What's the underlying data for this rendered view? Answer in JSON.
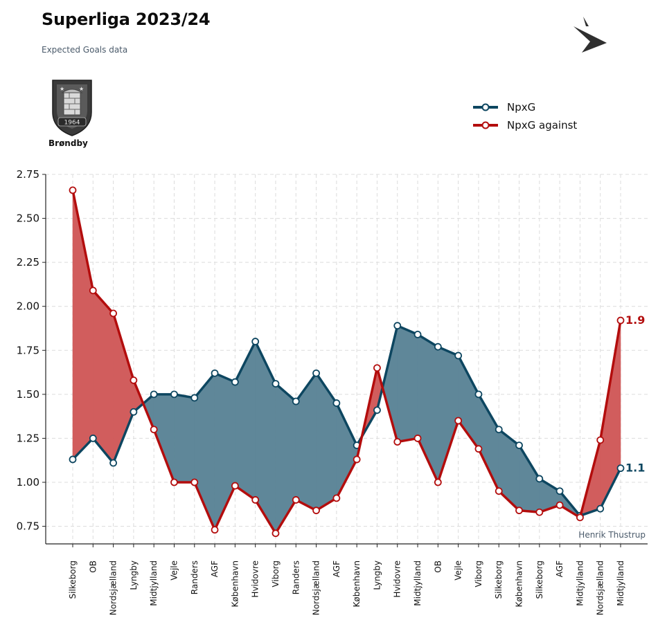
{
  "header": {
    "title": "Superliga 2023/24",
    "subtitle": "Expected Goals data"
  },
  "team": {
    "name": "Brøndby",
    "crest_year": "1964"
  },
  "credit": "Henrik Thustrup",
  "colors": {
    "npxg": "#0d4660",
    "npxg_against": "#b30d0d",
    "fill_npxg": "#5f8799",
    "fill_against": "#d15d5d",
    "grid": "#dcdcdc"
  },
  "chart_data": {
    "type": "line",
    "ylim": [
      0.65,
      2.75
    ],
    "yticks": [
      "0.75",
      "1.00",
      "1.25",
      "1.50",
      "1.75",
      "2.00",
      "2.25",
      "2.50",
      "2.75"
    ],
    "grid": true,
    "legend_position": "top-right",
    "categories": [
      "Silkeborg",
      "OB",
      "Nordsjælland",
      "Lyngby",
      "Midtjylland",
      "Vejle",
      "Randers",
      "AGF",
      "København",
      "Hvidovre",
      "Viborg",
      "Randers",
      "Nordsjælland",
      "AGF",
      "København",
      "Lyngby",
      "Hvidovre",
      "Midtjylland",
      "OB",
      "Vejle",
      "Viborg",
      "Silkeborg",
      "København",
      "Silkeborg",
      "AGF",
      "Midtjylland",
      "Nordsjælland",
      "Midtjylland"
    ],
    "series": [
      {
        "name": "NpxG",
        "color": "#0d4660",
        "end_label": "1.1",
        "values": [
          1.13,
          1.25,
          1.11,
          1.4,
          1.5,
          1.5,
          1.48,
          1.62,
          1.57,
          1.8,
          1.56,
          1.46,
          1.62,
          1.45,
          1.21,
          1.41,
          1.89,
          1.84,
          1.77,
          1.72,
          1.5,
          1.3,
          1.21,
          1.02,
          0.95,
          0.81,
          0.85,
          1.08
        ]
      },
      {
        "name": "NpxG against",
        "color": "#b30d0d",
        "end_label": "1.9",
        "values": [
          2.66,
          2.09,
          1.96,
          1.58,
          1.3,
          1.0,
          1.0,
          0.73,
          0.98,
          0.9,
          0.71,
          0.9,
          0.84,
          0.91,
          1.13,
          1.65,
          1.23,
          1.25,
          1.0,
          1.35,
          1.19,
          0.95,
          0.84,
          0.83,
          0.87,
          0.8,
          1.24,
          1.92
        ]
      }
    ]
  }
}
